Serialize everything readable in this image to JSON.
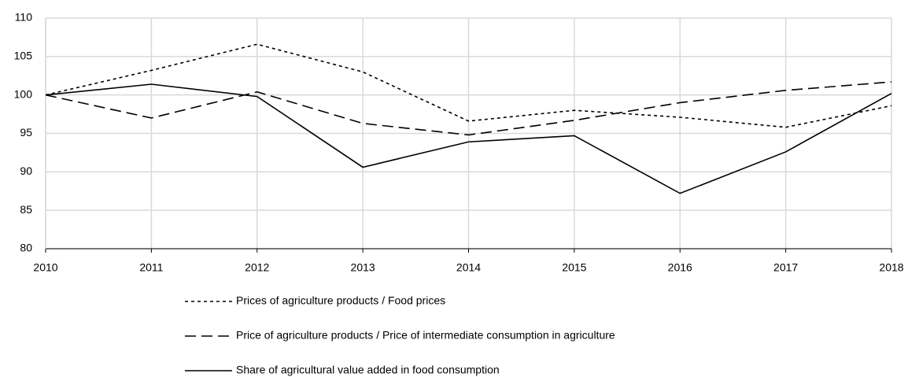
{
  "chart_data": {
    "type": "line",
    "x": [
      2010,
      2011,
      2012,
      2013,
      2014,
      2015,
      2016,
      2017,
      2018
    ],
    "xlim": [
      2010,
      2018
    ],
    "xticks": [
      2010,
      2011,
      2012,
      2013,
      2014,
      2015,
      2016,
      2017,
      2018
    ],
    "ylim": [
      80,
      110
    ],
    "yticks": [
      80,
      85,
      90,
      95,
      100,
      105,
      110
    ],
    "grid": true,
    "legend": "bottom",
    "series": [
      {
        "name": "Prices of agriculture products / Food prices",
        "color": "#000000",
        "dash": "4,4",
        "values": [
          100,
          103.2,
          106.6,
          103,
          96.6,
          98,
          97.1,
          95.8,
          98.6
        ]
      },
      {
        "name": "Price of agriculture products / Price of intermediate consumption in agriculture",
        "color": "#000000",
        "dash": "14,7",
        "values": [
          100,
          97,
          100.4,
          96.3,
          94.8,
          96.7,
          99,
          100.6,
          101.7
        ]
      },
      {
        "name": "Share of agricultural value added in food consumption",
        "color": "#000000",
        "dash": "none",
        "values": [
          100,
          101.4,
          99.8,
          90.6,
          93.9,
          94.7,
          87.2,
          92.6,
          100.2
        ]
      }
    ]
  }
}
